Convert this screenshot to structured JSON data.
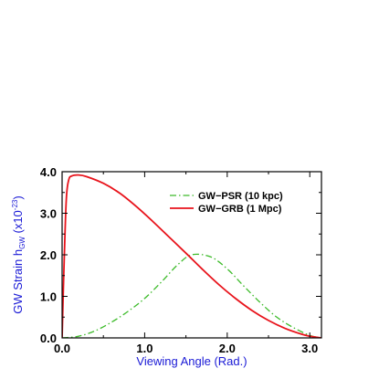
{
  "chart_data": {
    "type": "line",
    "xlabel": "Viewing Angle (Rad.)",
    "ylabel": {
      "main": "GW Strain h",
      "subscript": "GW",
      "unit_open": " (x10",
      "superscript": "-23",
      "unit_close": ")"
    },
    "xlim": [
      0,
      3.14159
    ],
    "ylim": [
      0,
      4.0
    ],
    "x_ticks": [
      0.0,
      1.0,
      2.0,
      3.0
    ],
    "x_tick_labels": [
      "0.0",
      "1.0",
      "2.0",
      "3.0"
    ],
    "y_ticks": [
      0.0,
      1.0,
      2.0,
      3.0,
      4.0
    ],
    "y_tick_labels": [
      "0.0",
      "1.0",
      "2.0",
      "3.0",
      "4.0"
    ],
    "grid": false,
    "legend_position": "top-right",
    "series": [
      {
        "name": "GW−PSR (10 kpc)",
        "color": "#3dbb2a",
        "dash": "dash-dot",
        "x": [
          0.0,
          0.2,
          0.4,
          0.6,
          0.8,
          1.0,
          1.2,
          1.4,
          1.57,
          1.8,
          2.0,
          2.2,
          2.4,
          2.6,
          2.8,
          3.0,
          3.14
        ],
        "y": [
          0.0,
          0.04,
          0.17,
          0.38,
          0.64,
          0.95,
          1.34,
          1.76,
          2.0,
          1.95,
          1.66,
          1.25,
          0.85,
          0.5,
          0.25,
          0.06,
          0.0
        ]
      },
      {
        "name": "GW−GRB (1 Mpc)",
        "color": "#e8131b",
        "dash": "solid",
        "x": [
          0.0,
          0.02,
          0.05,
          0.08,
          0.12,
          0.2,
          0.3,
          0.5,
          0.7,
          0.9,
          1.1,
          1.3,
          1.5,
          1.7,
          1.9,
          2.1,
          2.3,
          2.5,
          2.7,
          2.9,
          3.0,
          3.1,
          3.14
        ],
        "y": [
          0.0,
          1.5,
          3.3,
          3.8,
          3.9,
          3.92,
          3.88,
          3.72,
          3.48,
          3.16,
          2.8,
          2.42,
          2.04,
          1.65,
          1.28,
          0.95,
          0.66,
          0.42,
          0.23,
          0.09,
          0.04,
          0.01,
          0.0
        ]
      }
    ]
  }
}
